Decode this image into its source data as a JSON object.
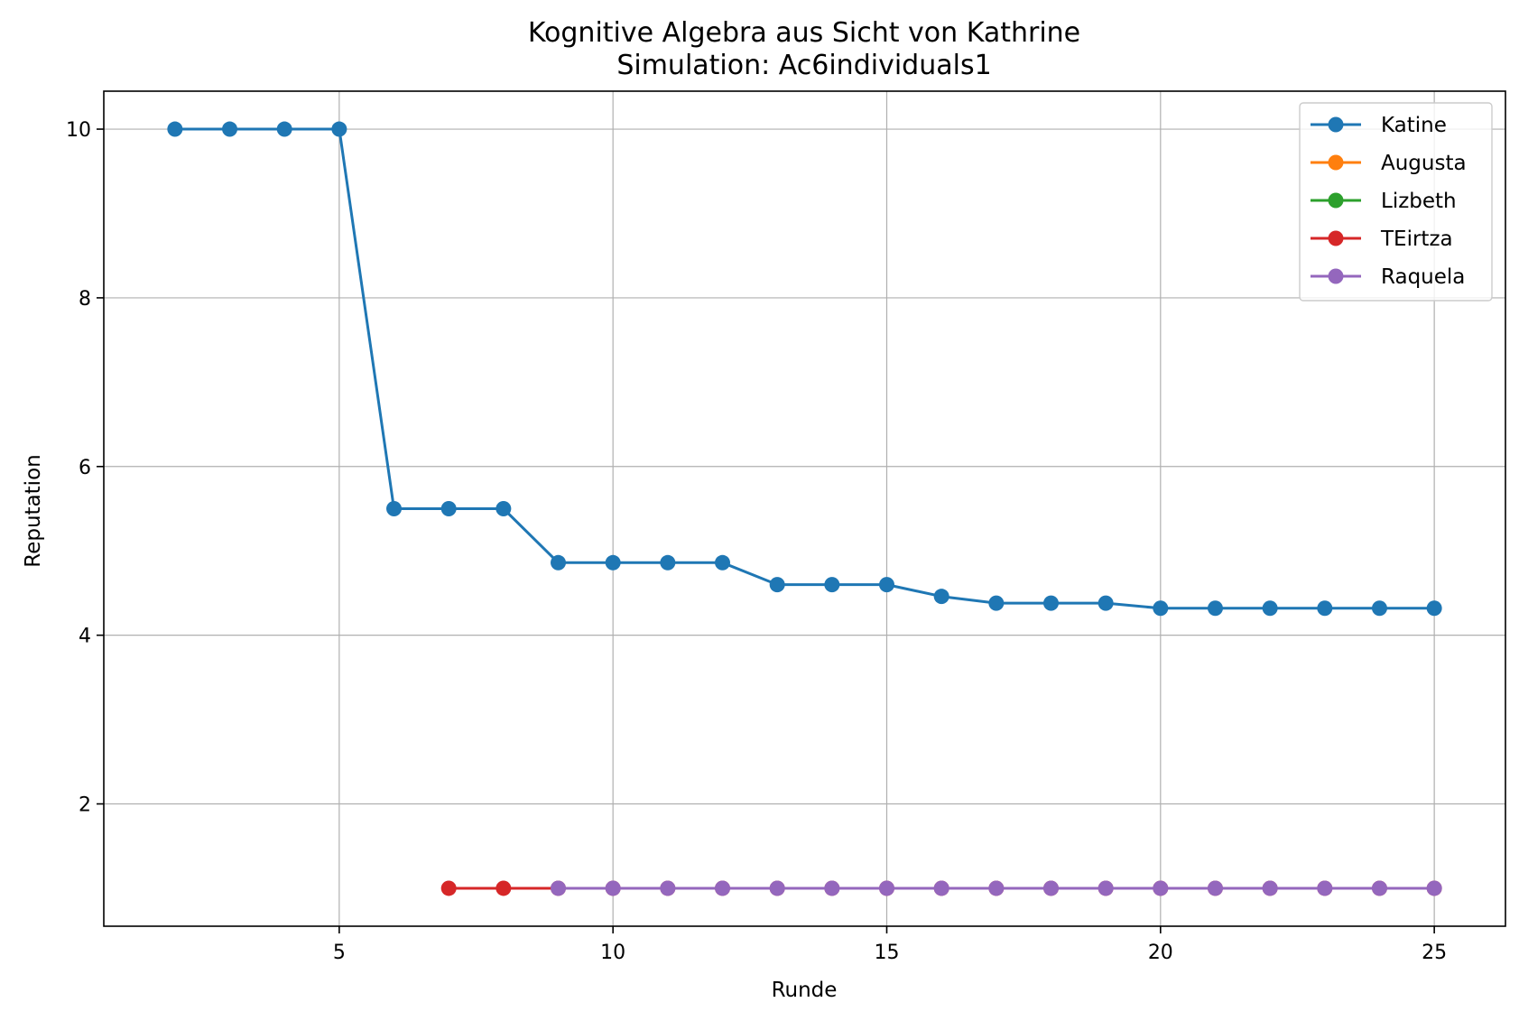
{
  "chart_data": {
    "type": "line",
    "title": "Kognitive Algebra aus Sicht von Kathrine",
    "subtitle": "Simulation: Ac6individuals1",
    "xlabel": "Runde",
    "ylabel": "Reputation",
    "xlim": [
      0.7,
      26.3
    ],
    "ylim": [
      0.55,
      10.45
    ],
    "xticks": [
      5,
      10,
      15,
      20,
      25
    ],
    "yticks": [
      2,
      4,
      6,
      8,
      10
    ],
    "grid": true,
    "legend_position": "top-right",
    "series": [
      {
        "name": "Katine",
        "color": "#1f77b4",
        "x": [
          2,
          3,
          4,
          5,
          6,
          7,
          8,
          9,
          10,
          11,
          12,
          13,
          14,
          15,
          16,
          17,
          18,
          19,
          20,
          21,
          22,
          23,
          24,
          25
        ],
        "y": [
          10,
          10,
          10,
          10,
          5.5,
          5.5,
          5.5,
          4.86,
          4.86,
          4.86,
          4.86,
          4.6,
          4.6,
          4.6,
          4.46,
          4.38,
          4.38,
          4.38,
          4.32,
          4.32,
          4.32,
          4.32,
          4.32,
          4.32
        ]
      },
      {
        "name": "Augusta",
        "color": "#ff7f0e",
        "x": [],
        "y": []
      },
      {
        "name": "Lizbeth",
        "color": "#2ca02c",
        "x": [],
        "y": []
      },
      {
        "name": "TEirtza",
        "color": "#d62728",
        "x": [
          7,
          8,
          9,
          10,
          11,
          12,
          13,
          14,
          15,
          16,
          17,
          18,
          19,
          20,
          21,
          22,
          23,
          24,
          25
        ],
        "y": [
          1,
          1,
          1,
          1,
          1,
          1,
          1,
          1,
          1,
          1,
          1,
          1,
          1,
          1,
          1,
          1,
          1,
          1,
          1
        ]
      },
      {
        "name": "Raquela",
        "color": "#9467bd",
        "x": [
          9,
          10,
          11,
          12,
          13,
          14,
          15,
          16,
          17,
          18,
          19,
          20,
          21,
          22,
          23,
          24,
          25
        ],
        "y": [
          1,
          1,
          1,
          1,
          1,
          1,
          1,
          1,
          1,
          1,
          1,
          1,
          1,
          1,
          1,
          1,
          1
        ]
      }
    ]
  }
}
